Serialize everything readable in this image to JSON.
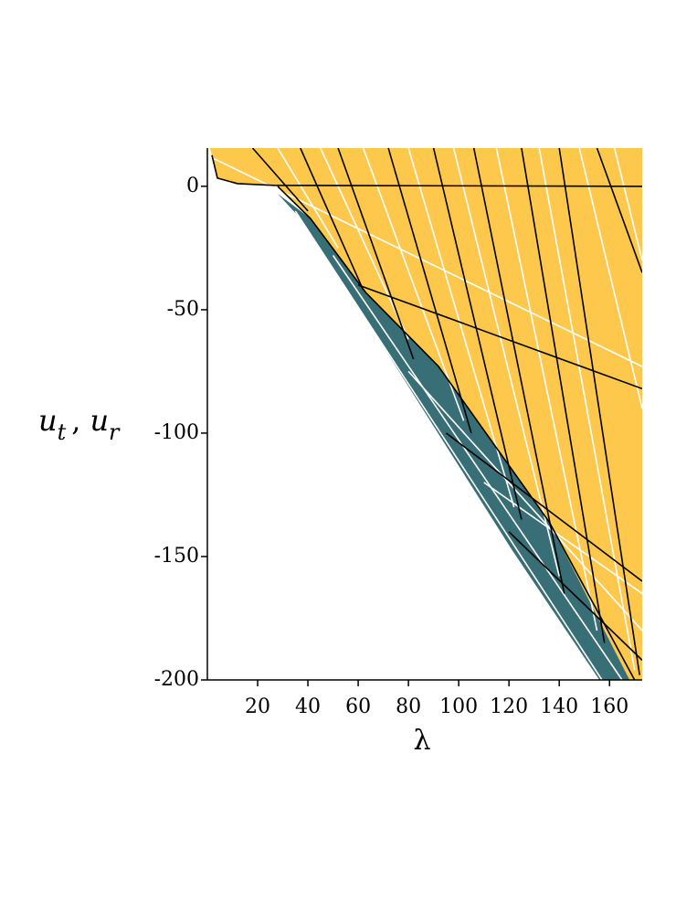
{
  "chart_data": {
    "type": "line",
    "xlabel": "λ",
    "ylabel": [
      "u",
      "t",
      ",",
      "u",
      "r"
    ],
    "xlim": [
      0,
      173
    ],
    "ylim": [
      -200,
      15.5
    ],
    "xticks": [
      20,
      40,
      60,
      80,
      100,
      120,
      140,
      160
    ],
    "yticks": [
      0,
      -50,
      -100,
      -150,
      -200
    ],
    "areas": [
      {
        "color": "#fec84d",
        "x": [
          1,
          173,
          173,
          168,
          136,
          92,
          63,
          41,
          28,
          12,
          4,
          1.8
        ],
        "values": [
          15.5,
          15.5,
          -200,
          -200,
          -136,
          -73,
          -43,
          -13,
          0,
          1.1,
          3.3,
          12.6
        ]
      },
      {
        "color": "#386e75",
        "x": [
          28,
          37,
          70,
          121,
          156,
          168,
          136,
          92,
          63,
          41
        ],
        "values": [
          -3,
          -13,
          -65,
          -147,
          -200,
          -200,
          -136,
          -73,
          -43,
          -13
        ]
      }
    ],
    "series": [
      {
        "color": "#ffffff",
        "x": [
          1,
          173
        ],
        "values": [
          12,
          -73
        ]
      },
      {
        "color": "#ffffff",
        "x": [
          28,
          52
        ],
        "values": [
          15.5,
          -25
        ]
      },
      {
        "color": "#ffffff",
        "x": [
          45,
          80
        ],
        "values": [
          15.5,
          -62
        ]
      },
      {
        "color": "#ffffff",
        "x": [
          62,
          102
        ],
        "values": [
          15.5,
          -95
        ]
      },
      {
        "color": "#ffffff",
        "x": [
          80,
          122
        ],
        "values": [
          15.5,
          -130
        ]
      },
      {
        "color": "#ffffff",
        "x": [
          98,
          140
        ],
        "values": [
          15.5,
          -158
        ]
      },
      {
        "color": "#ffffff",
        "x": [
          115,
          155
        ],
        "values": [
          15.5,
          -180
        ]
      },
      {
        "color": "#ffffff",
        "x": [
          132,
          170
        ],
        "values": [
          15.5,
          -196
        ]
      },
      {
        "color": "#ffffff",
        "x": [
          148,
          173
        ],
        "values": [
          15.5,
          -90
        ]
      },
      {
        "color": "#ffffff",
        "x": [
          162,
          173
        ],
        "values": [
          15.5,
          -30
        ]
      },
      {
        "color": "#ffffff",
        "x": [
          35,
          157
        ],
        "values": [
          -10,
          -200
        ]
      },
      {
        "color": "#ffffff",
        "x": [
          50,
          165
        ],
        "values": [
          -28,
          -200
        ]
      },
      {
        "color": "#ffffff",
        "x": [
          80,
          173
        ],
        "values": [
          -75,
          -180
        ]
      },
      {
        "color": "#ffffff",
        "x": [
          110,
          173
        ],
        "values": [
          -120,
          -165
        ]
      },
      {
        "color": "#000000",
        "x": [
          1.8,
          4,
          12,
          26.5,
          173
        ],
        "values": [
          12.6,
          3.3,
          1.1,
          0.4,
          0
        ]
      },
      {
        "color": "#000000",
        "x": [
          28,
          41,
          63,
          92,
          136,
          170
        ],
        "values": [
          0,
          -13,
          -43,
          -73,
          -136,
          -200
        ]
      },
      {
        "color": "#000000",
        "x": [
          18,
          40
        ],
        "values": [
          15.5,
          -10
        ]
      },
      {
        "color": "#000000",
        "x": [
          37,
          62
        ],
        "values": [
          15.5,
          -42
        ]
      },
      {
        "color": "#000000",
        "x": [
          52,
          82
        ],
        "values": [
          15.5,
          -70
        ]
      },
      {
        "color": "#000000",
        "x": [
          72,
          105
        ],
        "values": [
          15.5,
          -100
        ]
      },
      {
        "color": "#000000",
        "x": [
          90,
          125
        ],
        "values": [
          15.5,
          -135
        ]
      },
      {
        "color": "#000000",
        "x": [
          106,
          142
        ],
        "values": [
          15.5,
          -165
        ]
      },
      {
        "color": "#000000",
        "x": [
          125,
          158
        ],
        "values": [
          15.5,
          -185
        ]
      },
      {
        "color": "#000000",
        "x": [
          140,
          172
        ],
        "values": [
          15.5,
          -198
        ]
      },
      {
        "color": "#000000",
        "x": [
          155,
          173
        ],
        "values": [
          15.5,
          -35
        ]
      },
      {
        "color": "#000000",
        "x": [
          60,
          173
        ],
        "values": [
          -40,
          -82
        ]
      },
      {
        "color": "#000000",
        "x": [
          95,
          173
        ],
        "values": [
          -100,
          -160
        ]
      },
      {
        "color": "#000000",
        "x": [
          120,
          173
        ],
        "values": [
          -140,
          -192
        ]
      }
    ]
  }
}
